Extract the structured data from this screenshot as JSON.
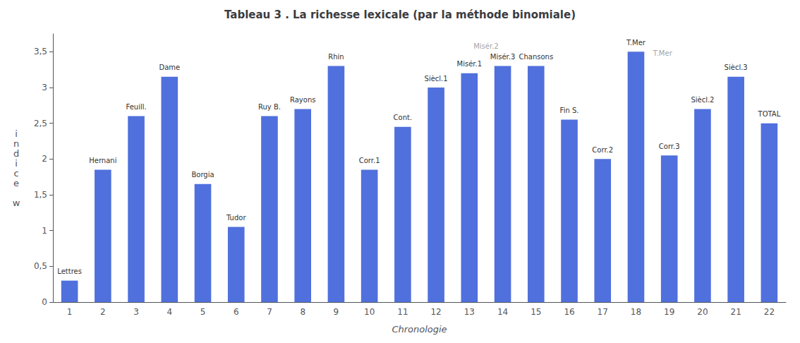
{
  "chart_data": {
    "type": "bar",
    "title": "Tableau 3 . La richesse lexicale (par la méthode binomiale)",
    "xlabel": "Chronologie",
    "ylabel": "indice w",
    "categories": [
      "1",
      "2",
      "3",
      "4",
      "5",
      "6",
      "7",
      "8",
      "9",
      "10",
      "11",
      "12",
      "13",
      "14",
      "15",
      "16",
      "17",
      "18",
      "19",
      "20",
      "21",
      "22"
    ],
    "values": [
      0.3,
      1.85,
      2.6,
      3.15,
      1.65,
      1.05,
      2.6,
      2.7,
      3.3,
      1.85,
      2.45,
      3.0,
      3.2,
      3.3,
      3.3,
      2.55,
      2.0,
      3.5,
      2.05,
      2.7,
      3.15,
      2.5
    ],
    "labels": [
      "Lettres",
      "Hernani",
      "Feuill.",
      "Dame",
      "Borgia",
      "Tudor",
      "Ruy B.",
      "Rayons",
      "Rhin",
      "Corr.1",
      "Cont.",
      "Siècl.1",
      "Misér.1",
      "Misér.3",
      "Chansons",
      "Fin S.",
      "Corr.2",
      "T.Mer",
      "Corr.3",
      "Siècl.2",
      "Siècl.3",
      "TOTAL"
    ],
    "annotations": [
      {
        "text": "Misér.2",
        "x": 13.5,
        "y": 3.58,
        "color": "#888888"
      },
      {
        "text": "T.Mer",
        "x": 18.8,
        "y": 3.48,
        "color": "#888888"
      }
    ],
    "ylim": [
      0,
      3.75
    ],
    "yticks": [
      0,
      {
        "value": 0.5,
        "label": "0,5"
      },
      1,
      {
        "value": 1.5,
        "label": "1,5"
      },
      2,
      {
        "value": 2.5,
        "label": "2,5"
      },
      3,
      {
        "value": 3.5,
        "label": "3,5"
      }
    ],
    "grid": false
  }
}
